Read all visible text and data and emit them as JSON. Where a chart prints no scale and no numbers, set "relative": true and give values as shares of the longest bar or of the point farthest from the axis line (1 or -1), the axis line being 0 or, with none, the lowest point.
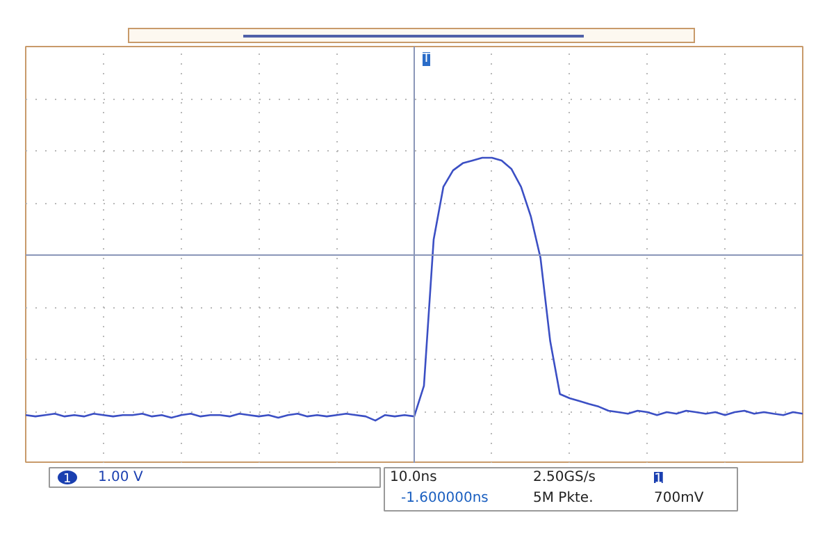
{
  "chart_data": {
    "type": "line",
    "relative": true,
    "grid": true,
    "line_style": "solid",
    "marker": "none",
    "tick_labels": false,
    "categories": [
      null,
      null,
      null,
      null,
      null,
      null,
      null,
      null,
      null,
      null,
      null,
      null,
      null,
      null,
      null,
      null,
      null,
      null,
      null,
      null,
      null,
      null,
      null,
      null,
      null,
      null,
      null,
      null,
      null,
      null,
      null,
      null,
      null,
      null,
      null,
      null,
      null,
      null,
      null,
      null,
      null,
      null,
      null,
      null,
      null,
      null,
      null,
      null,
      null,
      null,
      null,
      null,
      null,
      null,
      null,
      null,
      null,
      null,
      null,
      null,
      null,
      null,
      null,
      null,
      null,
      null,
      null,
      null,
      null,
      null,
      null,
      null,
      null,
      null,
      null,
      null,
      null,
      null,
      null,
      null,
      null
    ],
    "series": [
      {
        "color": "#3b4fc4",
        "values": [
          -0.967,
          -0.975,
          -0.967,
          -0.959,
          -0.975,
          -0.967,
          -0.975,
          -0.959,
          -0.967,
          -0.975,
          -0.967,
          -0.967,
          -0.959,
          -0.975,
          -0.967,
          -0.983,
          -0.967,
          -0.959,
          -0.975,
          -0.967,
          -0.967,
          -0.975,
          -0.959,
          -0.967,
          -0.975,
          -0.967,
          -0.983,
          -0.967,
          -0.959,
          -0.975,
          -0.967,
          -0.975,
          -0.967,
          -0.959,
          -0.967,
          -0.975,
          -1.0,
          -0.967,
          -0.975,
          -0.967,
          -0.975,
          -0.79,
          0.093,
          0.412,
          0.512,
          0.555,
          0.571,
          0.588,
          0.588,
          0.571,
          0.521,
          0.412,
          0.235,
          -0.017,
          -0.52,
          -0.84,
          -0.865,
          -0.882,
          -0.9,
          -0.916,
          -0.941,
          -0.949,
          -0.959,
          -0.941,
          -0.949,
          -0.967,
          -0.949,
          -0.959,
          -0.941,
          -0.949,
          -0.959,
          -0.949,
          -0.967,
          -0.949,
          -0.941,
          -0.959,
          -0.949,
          -0.959,
          -0.967,
          -0.949,
          -0.959
        ]
      }
    ],
    "ref_lines": [
      {
        "axis": "y",
        "value": 0,
        "color": "#8a96b8",
        "line_style": "solid"
      }
    ],
    "annotations": [
      "1",
      "1.00 V",
      "10.0ns",
      "2.50GS/s",
      "1",
      "-1.600000ns",
      "5M Pkte.",
      "700mV",
      "T"
    ]
  }
}
